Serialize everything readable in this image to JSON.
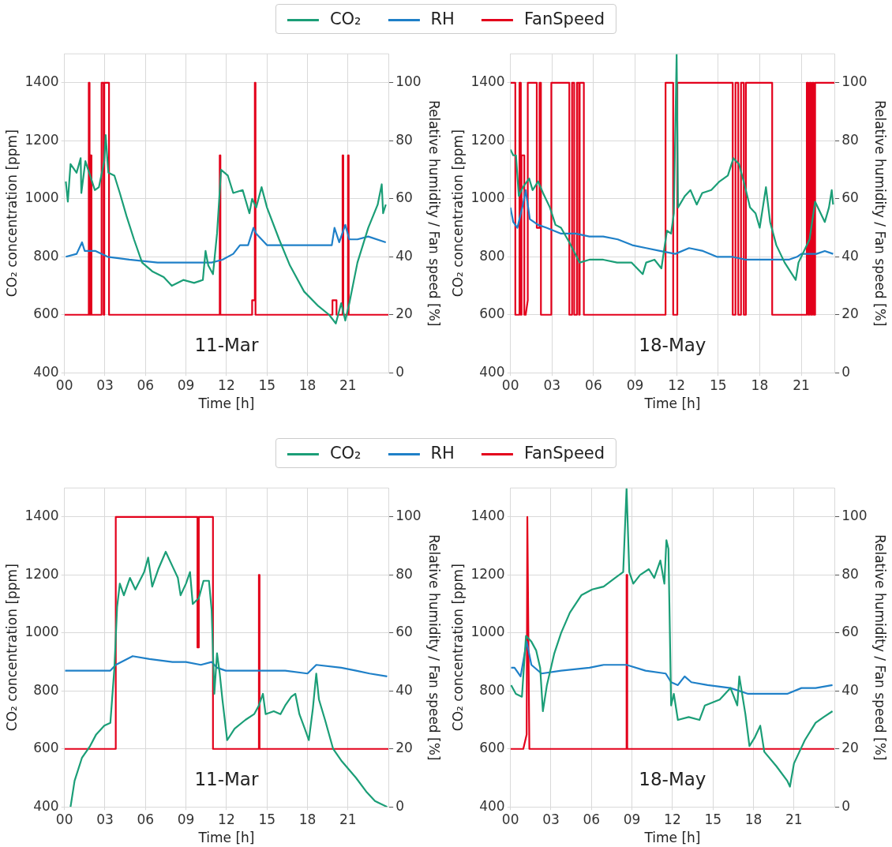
{
  "chart_data": [
    {
      "type": "line",
      "xlabel": "Time [h]",
      "ylabel": "CO₂ concentration [ppm]",
      "y2label": "Relative humidity / Fan speed [%]",
      "annotations": [
        "11-Mar"
      ],
      "legend": "top",
      "grid": true,
      "xlim": [
        0,
        24
      ],
      "xticks": [
        {
          "value": 0,
          "label": "00"
        },
        {
          "value": 3,
          "label": "03"
        },
        {
          "value": 6,
          "label": "06"
        },
        {
          "value": 9,
          "label": "09"
        },
        {
          "value": 12,
          "label": "12"
        },
        {
          "value": 15,
          "label": "15"
        },
        {
          "value": 18,
          "label": "18"
        },
        {
          "value": 21,
          "label": "21"
        }
      ],
      "ylim": [
        400,
        1500
      ],
      "yticks": [
        400,
        600,
        800,
        1000,
        1200,
        1400
      ],
      "y2lim": [
        0,
        110
      ],
      "y2ticks": [
        0,
        20,
        40,
        60,
        80,
        100
      ],
      "series": [
        {
          "name": "CO₂",
          "color": "#1b9e77",
          "x": [
            0.1,
            0.25,
            0.45,
            0.9,
            1.2,
            1.25,
            1.55,
            1.9,
            2.25,
            2.55,
            2.95,
            3.05,
            3.25,
            3.7,
            4.1,
            4.6,
            5.15,
            5.75,
            6.5,
            7.35,
            7.95,
            8.8,
            9.6,
            10.25,
            10.45,
            10.65,
            11.0,
            11.3,
            11.6,
            12.1,
            12.5,
            13.2,
            13.7,
            13.9,
            14.2,
            14.6,
            15.0,
            15.9,
            16.7,
            17.75,
            18.8,
            19.6,
            20.1,
            20.5,
            20.8,
            21.1,
            21.7,
            22.5,
            23.2,
            23.5,
            23.6,
            23.8
          ],
          "values": [
            1060,
            990,
            1120,
            1090,
            1140,
            1020,
            1130,
            1080,
            1030,
            1040,
            1130,
            1220,
            1090,
            1080,
            1020,
            940,
            860,
            780,
            750,
            730,
            700,
            720,
            710,
            720,
            820,
            770,
            740,
            880,
            1100,
            1080,
            1020,
            1030,
            950,
            1000,
            970,
            1040,
            970,
            860,
            770,
            680,
            630,
            600,
            570,
            640,
            580,
            640,
            780,
            900,
            980,
            1050,
            950,
            980
          ]
        },
        {
          "name": "RH",
          "color": "#1f80c8",
          "axis": "y2",
          "x": [
            0.1,
            0.9,
            1.3,
            1.5,
            2.3,
            3.2,
            4.8,
            6.9,
            9.0,
            10.9,
            11.7,
            12.5,
            13.0,
            13.6,
            14.0,
            14.2,
            15.0,
            16.3,
            19.8,
            20.0,
            20.35,
            20.8,
            21.1,
            21.7,
            22.5,
            23.8
          ],
          "values": [
            40,
            41,
            45,
            42,
            42,
            40,
            39,
            38,
            38,
            38,
            39,
            41,
            44,
            44,
            50,
            48,
            44,
            44,
            44,
            50,
            45,
            51,
            46,
            46,
            47,
            45
          ]
        },
        {
          "name": "FanSpeed",
          "color": "#e3001b",
          "axis": "y2",
          "x": [
            0,
            1.8,
            1.8,
            1.86,
            1.86,
            1.93,
            1.93,
            2.0,
            2.0,
            2.75,
            2.75,
            2.9,
            2.9,
            2.95,
            2.95,
            3.3,
            3.3,
            11.5,
            11.5,
            11.55,
            11.55,
            13.9,
            13.9,
            14.1,
            14.1,
            14.15,
            14.15,
            19.85,
            19.85,
            20.15,
            20.15,
            20.6,
            20.6,
            20.65,
            20.65,
            21.0,
            21.0,
            21.05,
            21.05,
            24
          ],
          "values": [
            20,
            20,
            100,
            100,
            20,
            20,
            75,
            75,
            20,
            20,
            100,
            100,
            20,
            20,
            100,
            100,
            20,
            20,
            75,
            75,
            20,
            20,
            25,
            25,
            100,
            100,
            20,
            20,
            25,
            25,
            20,
            20,
            75,
            75,
            20,
            20,
            75,
            75,
            20,
            20
          ]
        }
      ]
    },
    {
      "type": "line",
      "xlabel": "Time [h]",
      "ylabel": "CO₂ concentration [ppm]",
      "y2label": "Relative humidity / Fan speed [%]",
      "annotations": [
        "18-May"
      ],
      "grid": true,
      "xlim": [
        0,
        23.4
      ],
      "xticks": [
        {
          "value": 0,
          "label": "00"
        },
        {
          "value": 3,
          "label": "03"
        },
        {
          "value": 6,
          "label": "06"
        },
        {
          "value": 9,
          "label": "09"
        },
        {
          "value": 12,
          "label": "12"
        },
        {
          "value": 15,
          "label": "15"
        },
        {
          "value": 18,
          "label": "18"
        },
        {
          "value": 21,
          "label": "21"
        }
      ],
      "ylim": [
        400,
        1500
      ],
      "yticks": [
        400,
        600,
        800,
        1000,
        1200,
        1400
      ],
      "y2lim": [
        0,
        110
      ],
      "y2ticks": [
        0,
        20,
        40,
        60,
        80,
        100
      ],
      "series": [
        {
          "color": "#1b9e77",
          "x": [
            0,
            0.2,
            0.4,
            0.6,
            0.9,
            1.35,
            1.6,
            2.0,
            2.35,
            2.85,
            3.25,
            3.65,
            4.25,
            5.0,
            5.7,
            6.7,
            7.7,
            8.75,
            9.55,
            9.8,
            10.4,
            10.9,
            11.3,
            11.6,
            11.8,
            12.0,
            12.1,
            12.6,
            13.0,
            13.45,
            13.85,
            14.5,
            15.1,
            15.7,
            16.1,
            16.5,
            16.9,
            17.3,
            17.7,
            18.0,
            18.45,
            18.75,
            19.2,
            19.8,
            20.2,
            20.6,
            20.8,
            21.6,
            22.0,
            22.4,
            22.7,
            23.0,
            23.2,
            23.3
          ],
          "values": [
            1170,
            1150,
            1150,
            1010,
            1040,
            1070,
            1030,
            1060,
            1020,
            970,
            910,
            900,
            850,
            780,
            790,
            790,
            780,
            780,
            740,
            780,
            790,
            760,
            890,
            880,
            950,
            1500,
            970,
            1010,
            1030,
            980,
            1020,
            1030,
            1060,
            1080,
            1140,
            1120,
            1050,
            970,
            950,
            900,
            1040,
            920,
            840,
            780,
            750,
            720,
            780,
            860,
            990,
            950,
            920,
            970,
            1030,
            980
          ]
        },
        {
          "color": "#1f80c8",
          "axis": "y2",
          "x": [
            0,
            0.2,
            0.5,
            0.9,
            1.1,
            1.4,
            2.0,
            2.6,
            3.65,
            4.7,
            5.7,
            6.7,
            7.75,
            8.8,
            9.8,
            10.8,
            11.9,
            12.9,
            13.9,
            14.9,
            16.0,
            17.0,
            18.0,
            19.0,
            20.1,
            20.7,
            21.0,
            22.1,
            22.7,
            23.3
          ],
          "values": [
            57,
            52,
            50,
            58,
            63,
            53,
            51,
            50,
            48,
            48,
            47,
            47,
            46,
            44,
            43,
            42,
            41,
            43,
            42,
            40,
            40,
            39,
            39,
            39,
            39,
            40,
            41,
            41,
            42,
            41
          ]
        },
        {
          "color": "#e3001b",
          "axis": "y2",
          "x": [
            0,
            0.35,
            0.35,
            0.65,
            0.65,
            0.75,
            0.75,
            0.8,
            0.8,
            1.0,
            1.0,
            1.1,
            1.25,
            1.25,
            1.9,
            1.9,
            2.1,
            2.1,
            2.2,
            2.2,
            2.95,
            2.95,
            4.25,
            4.25,
            4.45,
            4.45,
            4.6,
            4.6,
            4.8,
            4.8,
            4.95,
            4.95,
            5.0,
            5.0,
            5.3,
            5.3,
            11.2,
            11.2,
            11.75,
            11.75,
            12.05,
            12.05,
            16.05,
            16.05,
            16.25,
            16.25,
            16.45,
            16.45,
            16.65,
            16.65,
            16.85,
            16.85,
            17.0,
            17.0,
            18.9,
            18.9,
            21.4,
            21.4,
            21.5,
            21.5,
            21.6,
            21.6,
            21.7,
            21.7,
            21.8,
            21.8,
            21.9,
            21.9,
            22.0,
            22.0,
            23.4
          ],
          "values": [
            100,
            100,
            20,
            20,
            100,
            100,
            20,
            20,
            75,
            75,
            20,
            20,
            25,
            100,
            100,
            50,
            50,
            100,
            100,
            20,
            20,
            100,
            100,
            20,
            20,
            100,
            100,
            20,
            20,
            100,
            100,
            20,
            20,
            100,
            100,
            20,
            20,
            100,
            100,
            20,
            20,
            100,
            100,
            20,
            20,
            100,
            100,
            20,
            20,
            100,
            100,
            20,
            20,
            100,
            100,
            20,
            20,
            100,
            100,
            20,
            20,
            100,
            100,
            20,
            20,
            100,
            100,
            20,
            20,
            100,
            100
          ]
        }
      ]
    },
    {
      "type": "line",
      "xlabel": "Time [h]",
      "ylabel": "CO₂ concentration [ppm]",
      "y2label": "Relative humidity / Fan speed [%]",
      "annotations": [
        "11-Mar"
      ],
      "legend": "top",
      "grid": true,
      "xlim": [
        0,
        24
      ],
      "xticks": [
        {
          "value": 0,
          "label": "00"
        },
        {
          "value": 3,
          "label": "03"
        },
        {
          "value": 6,
          "label": "06"
        },
        {
          "value": 9,
          "label": "09"
        },
        {
          "value": 12,
          "label": "12"
        },
        {
          "value": 15,
          "label": "15"
        },
        {
          "value": 18,
          "label": "18"
        },
        {
          "value": 21,
          "label": "21"
        }
      ],
      "ylim": [
        400,
        1500
      ],
      "yticks": [
        400,
        600,
        800,
        1000,
        1200,
        1400
      ],
      "y2lim": [
        0,
        110
      ],
      "y2ticks": [
        0,
        20,
        40,
        60,
        80,
        100
      ],
      "series": [
        {
          "name": "CO₂",
          "color": "#1b9e77",
          "x": [
            0.45,
            0.75,
            1.3,
            1.9,
            2.35,
            2.95,
            3.4,
            3.7,
            3.9,
            4.1,
            4.4,
            4.85,
            5.25,
            5.9,
            6.2,
            6.5,
            6.95,
            7.5,
            8.0,
            8.4,
            8.6,
            9.0,
            9.3,
            9.5,
            9.95,
            10.3,
            10.7,
            10.9,
            11.1,
            11.3,
            11.5,
            11.7,
            12.05,
            12.6,
            13.4,
            14.05,
            14.4,
            14.7,
            14.9,
            15.5,
            16.0,
            16.35,
            16.8,
            17.1,
            17.4,
            17.8,
            18.1,
            18.4,
            18.65,
            18.85,
            19.3,
            19.9,
            20.5,
            21.6,
            22.4,
            23.0,
            23.9
          ],
          "values": [
            400,
            490,
            570,
            610,
            650,
            680,
            690,
            880,
            1090,
            1170,
            1130,
            1190,
            1150,
            1210,
            1260,
            1160,
            1220,
            1280,
            1230,
            1190,
            1130,
            1170,
            1210,
            1100,
            1120,
            1180,
            1180,
            1080,
            790,
            930,
            860,
            770,
            630,
            670,
            700,
            720,
            750,
            790,
            720,
            730,
            720,
            750,
            780,
            790,
            720,
            670,
            630,
            740,
            860,
            770,
            700,
            600,
            560,
            500,
            450,
            420,
            400
          ]
        },
        {
          "name": "RH",
          "color": "#1f80c8",
          "axis": "y2",
          "x": [
            0.05,
            3.4,
            3.8,
            5.05,
            6.3,
            8.0,
            9.0,
            10.1,
            10.9,
            11.3,
            11.95,
            13.2,
            14.7,
            16.35,
            18.0,
            18.65,
            20.5,
            21.6,
            22.6,
            23.9
          ],
          "values": [
            47,
            47,
            49,
            52,
            51,
            50,
            50,
            49,
            50,
            48,
            47,
            47,
            47,
            47,
            46,
            49,
            48,
            47,
            46,
            45
          ]
        },
        {
          "name": "FanSpeed",
          "color": "#e3001b",
          "axis": "y2",
          "x": [
            0,
            3.8,
            3.8,
            9.85,
            9.85,
            9.95,
            9.95,
            11.0,
            11.0,
            14.4,
            14.4,
            14.45,
            14.45,
            24
          ],
          "values": [
            20,
            20,
            100,
            100,
            55,
            55,
            100,
            100,
            20,
            20,
            80,
            80,
            20,
            20
          ]
        }
      ]
    },
    {
      "type": "line",
      "xlabel": "Time [h]",
      "ylabel": "CO₂ concentration [ppm]",
      "y2label": "Relative humidity / Fan speed [%]",
      "annotations": [
        "18-May"
      ],
      "grid": true,
      "xlim": [
        0,
        24
      ],
      "xticks": [
        {
          "value": 0,
          "label": "00"
        },
        {
          "value": 3,
          "label": "03"
        },
        {
          "value": 6,
          "label": "06"
        },
        {
          "value": 9,
          "label": "09"
        },
        {
          "value": 12,
          "label": "12"
        },
        {
          "value": 15,
          "label": "15"
        },
        {
          "value": 18,
          "label": "18"
        },
        {
          "value": 21,
          "label": "21"
        }
      ],
      "ylim": [
        400,
        1500
      ],
      "yticks": [
        400,
        600,
        800,
        1000,
        1200,
        1400
      ],
      "y2lim": [
        0,
        110
      ],
      "y2ticks": [
        0,
        20,
        40,
        60,
        80,
        100
      ],
      "series": [
        {
          "color": "#1b9e77",
          "x": [
            0.05,
            0.4,
            0.85,
            1.15,
            1.55,
            1.9,
            2.2,
            2.4,
            2.7,
            3.25,
            3.75,
            4.4,
            5.25,
            6.05,
            6.9,
            7.75,
            8.35,
            8.6,
            8.8,
            9.1,
            9.6,
            10.25,
            10.65,
            11.1,
            11.4,
            11.55,
            11.7,
            11.9,
            12.1,
            12.4,
            13.2,
            14.0,
            14.4,
            15.5,
            16.3,
            16.8,
            16.95,
            17.4,
            17.7,
            18.1,
            18.5,
            18.8,
            19.7,
            20.5,
            20.7,
            21.0,
            21.8,
            22.6,
            23.2,
            23.85
          ],
          "values": [
            820,
            790,
            780,
            990,
            970,
            940,
            880,
            730,
            820,
            930,
            1000,
            1070,
            1130,
            1150,
            1160,
            1190,
            1210,
            1500,
            1210,
            1170,
            1200,
            1220,
            1190,
            1250,
            1170,
            1320,
            1290,
            750,
            790,
            700,
            710,
            700,
            750,
            770,
            810,
            750,
            850,
            720,
            610,
            640,
            680,
            590,
            540,
            490,
            470,
            550,
            630,
            690,
            710,
            730
          ]
        },
        {
          "color": "#1f80c8",
          "axis": "y2",
          "x": [
            0.05,
            0.3,
            0.75,
            1.2,
            1.55,
            2.3,
            3.75,
            5.85,
            6.9,
            8.6,
            10.0,
            11.5,
            11.9,
            12.4,
            12.9,
            13.4,
            14.6,
            16.3,
            17.6,
            18.4,
            20.5,
            21.55,
            22.6,
            23.85
          ],
          "values": [
            48,
            48,
            45,
            57,
            49,
            46,
            47,
            48,
            49,
            49,
            47,
            46,
            43,
            42,
            45,
            43,
            42,
            41,
            39,
            39,
            39,
            41,
            41,
            42
          ]
        },
        {
          "color": "#e3001b",
          "axis": "y2",
          "x": [
            0,
            0.95,
            1.2,
            1.25,
            1.4,
            8.6,
            8.6,
            8.65,
            8.65,
            24
          ],
          "values": [
            20,
            20,
            25,
            100,
            20,
            20,
            80,
            80,
            20,
            20
          ]
        }
      ]
    }
  ]
}
